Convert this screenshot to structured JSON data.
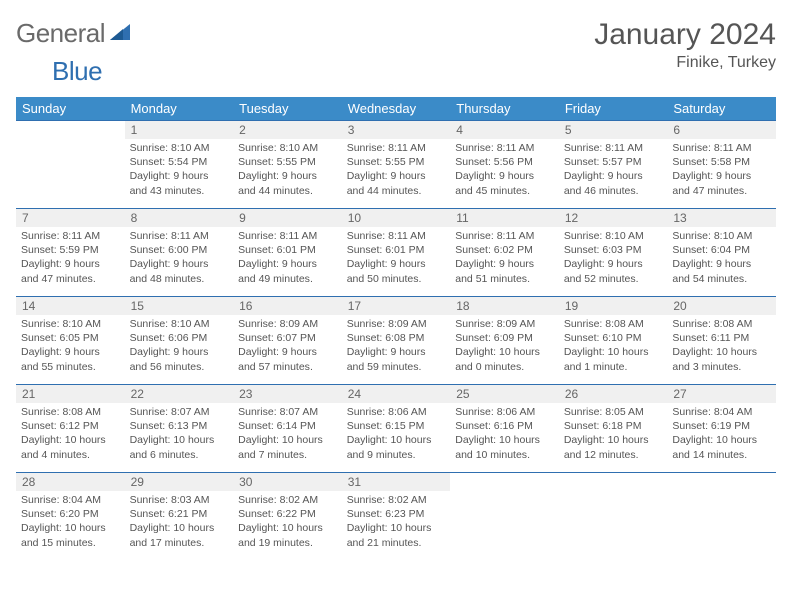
{
  "logo": {
    "part1": "General",
    "part2": "Blue"
  },
  "title": "January 2024",
  "location": "Finike, Turkey",
  "colors": {
    "header_bg": "#3b8bc8",
    "header_text": "#ffffff",
    "row_border": "#2f6fb0",
    "daynum_bg": "#f0f0f0",
    "text": "#555555",
    "logo_gray": "#6a6a6a",
    "logo_blue": "#2f6fb0"
  },
  "weekdays": [
    "Sunday",
    "Monday",
    "Tuesday",
    "Wednesday",
    "Thursday",
    "Friday",
    "Saturday"
  ],
  "weeks": [
    [
      {
        "empty": true
      },
      {
        "num": "1",
        "sunrise": "8:10 AM",
        "sunset": "5:54 PM",
        "daylight_h": "9",
        "daylight_m": "43 minutes"
      },
      {
        "num": "2",
        "sunrise": "8:10 AM",
        "sunset": "5:55 PM",
        "daylight_h": "9",
        "daylight_m": "44 minutes"
      },
      {
        "num": "3",
        "sunrise": "8:11 AM",
        "sunset": "5:55 PM",
        "daylight_h": "9",
        "daylight_m": "44 minutes"
      },
      {
        "num": "4",
        "sunrise": "8:11 AM",
        "sunset": "5:56 PM",
        "daylight_h": "9",
        "daylight_m": "45 minutes"
      },
      {
        "num": "5",
        "sunrise": "8:11 AM",
        "sunset": "5:57 PM",
        "daylight_h": "9",
        "daylight_m": "46 minutes"
      },
      {
        "num": "6",
        "sunrise": "8:11 AM",
        "sunset": "5:58 PM",
        "daylight_h": "9",
        "daylight_m": "47 minutes"
      }
    ],
    [
      {
        "num": "7",
        "sunrise": "8:11 AM",
        "sunset": "5:59 PM",
        "daylight_h": "9",
        "daylight_m": "47 minutes"
      },
      {
        "num": "8",
        "sunrise": "8:11 AM",
        "sunset": "6:00 PM",
        "daylight_h": "9",
        "daylight_m": "48 minutes"
      },
      {
        "num": "9",
        "sunrise": "8:11 AM",
        "sunset": "6:01 PM",
        "daylight_h": "9",
        "daylight_m": "49 minutes"
      },
      {
        "num": "10",
        "sunrise": "8:11 AM",
        "sunset": "6:01 PM",
        "daylight_h": "9",
        "daylight_m": "50 minutes"
      },
      {
        "num": "11",
        "sunrise": "8:11 AM",
        "sunset": "6:02 PM",
        "daylight_h": "9",
        "daylight_m": "51 minutes"
      },
      {
        "num": "12",
        "sunrise": "8:10 AM",
        "sunset": "6:03 PM",
        "daylight_h": "9",
        "daylight_m": "52 minutes"
      },
      {
        "num": "13",
        "sunrise": "8:10 AM",
        "sunset": "6:04 PM",
        "daylight_h": "9",
        "daylight_m": "54 minutes"
      }
    ],
    [
      {
        "num": "14",
        "sunrise": "8:10 AM",
        "sunset": "6:05 PM",
        "daylight_h": "9",
        "daylight_m": "55 minutes"
      },
      {
        "num": "15",
        "sunrise": "8:10 AM",
        "sunset": "6:06 PM",
        "daylight_h": "9",
        "daylight_m": "56 minutes"
      },
      {
        "num": "16",
        "sunrise": "8:09 AM",
        "sunset": "6:07 PM",
        "daylight_h": "9",
        "daylight_m": "57 minutes"
      },
      {
        "num": "17",
        "sunrise": "8:09 AM",
        "sunset": "6:08 PM",
        "daylight_h": "9",
        "daylight_m": "59 minutes"
      },
      {
        "num": "18",
        "sunrise": "8:09 AM",
        "sunset": "6:09 PM",
        "daylight_h": "10",
        "daylight_m": "0 minutes"
      },
      {
        "num": "19",
        "sunrise": "8:08 AM",
        "sunset": "6:10 PM",
        "daylight_h": "10",
        "daylight_m": "1 minute"
      },
      {
        "num": "20",
        "sunrise": "8:08 AM",
        "sunset": "6:11 PM",
        "daylight_h": "10",
        "daylight_m": "3 minutes"
      }
    ],
    [
      {
        "num": "21",
        "sunrise": "8:08 AM",
        "sunset": "6:12 PM",
        "daylight_h": "10",
        "daylight_m": "4 minutes"
      },
      {
        "num": "22",
        "sunrise": "8:07 AM",
        "sunset": "6:13 PM",
        "daylight_h": "10",
        "daylight_m": "6 minutes"
      },
      {
        "num": "23",
        "sunrise": "8:07 AM",
        "sunset": "6:14 PM",
        "daylight_h": "10",
        "daylight_m": "7 minutes"
      },
      {
        "num": "24",
        "sunrise": "8:06 AM",
        "sunset": "6:15 PM",
        "daylight_h": "10",
        "daylight_m": "9 minutes"
      },
      {
        "num": "25",
        "sunrise": "8:06 AM",
        "sunset": "6:16 PM",
        "daylight_h": "10",
        "daylight_m": "10 minutes"
      },
      {
        "num": "26",
        "sunrise": "8:05 AM",
        "sunset": "6:18 PM",
        "daylight_h": "10",
        "daylight_m": "12 minutes"
      },
      {
        "num": "27",
        "sunrise": "8:04 AM",
        "sunset": "6:19 PM",
        "daylight_h": "10",
        "daylight_m": "14 minutes"
      }
    ],
    [
      {
        "num": "28",
        "sunrise": "8:04 AM",
        "sunset": "6:20 PM",
        "daylight_h": "10",
        "daylight_m": "15 minutes"
      },
      {
        "num": "29",
        "sunrise": "8:03 AM",
        "sunset": "6:21 PM",
        "daylight_h": "10",
        "daylight_m": "17 minutes"
      },
      {
        "num": "30",
        "sunrise": "8:02 AM",
        "sunset": "6:22 PM",
        "daylight_h": "10",
        "daylight_m": "19 minutes"
      },
      {
        "num": "31",
        "sunrise": "8:02 AM",
        "sunset": "6:23 PM",
        "daylight_h": "10",
        "daylight_m": "21 minutes"
      },
      {
        "empty": true
      },
      {
        "empty": true
      },
      {
        "empty": true
      }
    ]
  ]
}
